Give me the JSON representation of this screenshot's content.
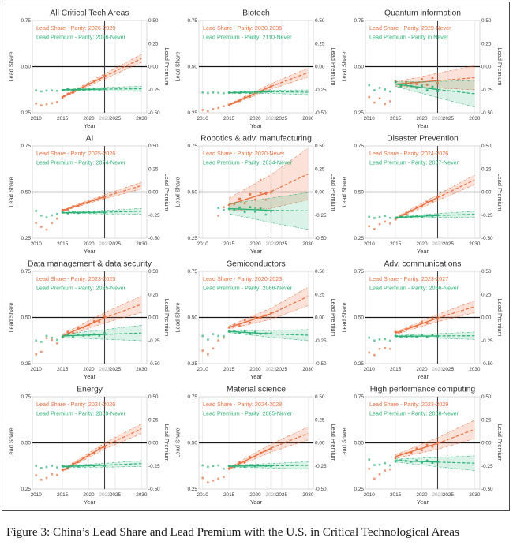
{
  "figure": {
    "caption": "Figure 3: China’s Lead Share and Lead Premium with the U.S. in Critical Technological Areas"
  },
  "colors": {
    "share": "#e87142",
    "premium": "#2cb176",
    "share_fan": "rgba(235,120,76,0.22)",
    "premium_fan": "rgba(44,177,118,0.17)",
    "grid": "#e6e6e6",
    "frame": "#cfcfcf",
    "vline": "#3e3e3e",
    "hline": "#161616",
    "tick": "#3a3a3a",
    "tick_muted": "#a0a0a0",
    "title": "#333333"
  },
  "axes": {
    "x_label": "Year",
    "y_left_label": "Lead Share",
    "y_right_label": "Lead Premium",
    "x_ticks": [
      2010,
      2015,
      2020,
      2023,
      2025,
      2030
    ],
    "y_left_ticks": [
      "0.25",
      "0.50",
      "0.75"
    ],
    "y_right_ticks": [
      "-0.50",
      "-0.25",
      "0.00",
      "0.25",
      "0.50"
    ],
    "x_range": [
      2009.3,
      2031
    ],
    "y_left_range": [
      0.25,
      0.75
    ],
    "y_right_range": [
      -0.5,
      0.5
    ],
    "vline_year": 2023,
    "hline_share": 0.5,
    "grid": true,
    "legend_position": "top-left inside"
  },
  "chart_data": [
    {
      "type": "line",
      "title": "All Critical Tech Areas",
      "legend": {
        "share": "Lead Share - Parity: 2026-2029",
        "premium": "Lead Premium - Parity: 2096-Never"
      },
      "share": {
        "pts": [
          [
            2010,
            0.3
          ],
          [
            2011,
            0.29
          ],
          [
            2012,
            0.296
          ],
          [
            2013,
            0.302
          ],
          [
            2014,
            0.308
          ]
        ],
        "fit": [
          [
            2015,
            0.335
          ],
          [
            2023,
            0.447
          ],
          [
            2030,
            0.545
          ]
        ],
        "fan": [
          0.004,
          0.022
        ],
        "amp": 0.004
      },
      "premium": {
        "pts": [
          [
            2010,
            0.372
          ],
          [
            2011,
            0.366
          ],
          [
            2012,
            0.37
          ],
          [
            2013,
            0.371
          ],
          [
            2014,
            0.369
          ]
        ],
        "fit": [
          [
            2015,
            0.374
          ],
          [
            2023,
            0.378
          ],
          [
            2030,
            0.38
          ]
        ],
        "fan": [
          0.003,
          0.014
        ],
        "amp": 0.003
      }
    },
    {
      "type": "line",
      "title": "Biotech",
      "legend": {
        "share": "Lead Share - Parity: 2030-2035",
        "premium": "Lead Premium - Parity: 2110-Never"
      },
      "share": {
        "pts": [
          [
            2010,
            0.265
          ],
          [
            2011,
            0.259
          ],
          [
            2012,
            0.27
          ],
          [
            2013,
            0.276
          ],
          [
            2014,
            0.285
          ]
        ],
        "fit": [
          [
            2015,
            0.292
          ],
          [
            2023,
            0.393
          ],
          [
            2030,
            0.468
          ]
        ],
        "fan": [
          0.004,
          0.024
        ],
        "amp": 0.004
      },
      "premium": {
        "pts": [
          [
            2010,
            0.36
          ],
          [
            2011,
            0.357
          ],
          [
            2012,
            0.36
          ],
          [
            2013,
            0.358
          ],
          [
            2014,
            0.356
          ]
        ],
        "fit": [
          [
            2015,
            0.358
          ],
          [
            2023,
            0.364
          ],
          [
            2030,
            0.361
          ]
        ],
        "fan": [
          0.003,
          0.013
        ],
        "amp": 0.003
      }
    },
    {
      "type": "line",
      "title": "Quantum information",
      "legend": {
        "share": "Lead Share - Parity: 2029-Never",
        "premium": "Lead Premium - Parity in Never"
      },
      "share": {
        "pts": [
          [
            2010,
            0.335
          ],
          [
            2011,
            0.305
          ],
          [
            2012,
            0.328
          ],
          [
            2013,
            0.298
          ],
          [
            2014,
            0.312
          ]
        ],
        "fit": [
          [
            2015,
            0.405
          ],
          [
            2023,
            0.424
          ],
          [
            2030,
            0.44
          ]
        ],
        "fan": [
          0.012,
          0.065
        ],
        "amp": 0.018
      },
      "premium": {
        "pts": [
          [
            2010,
            0.4
          ],
          [
            2011,
            0.372
          ],
          [
            2012,
            0.385
          ],
          [
            2013,
            0.376
          ],
          [
            2014,
            0.365
          ]
        ],
        "fit": [
          [
            2015,
            0.405
          ],
          [
            2023,
            0.376
          ],
          [
            2030,
            0.353
          ]
        ],
        "fan": [
          0.012,
          0.072
        ],
        "amp": 0.012
      }
    },
    {
      "type": "line",
      "title": "AI",
      "legend": {
        "share": "Lead Share - Parity: 2025-2026",
        "premium": "Lead Premium - Parity: 2074-Never"
      },
      "share": {
        "pts": [
          [
            2010,
            0.333
          ],
          [
            2011,
            0.312
          ],
          [
            2012,
            0.296
          ],
          [
            2013,
            0.332
          ],
          [
            2014,
            0.356
          ]
        ],
        "fit": [
          [
            2015,
            0.4
          ],
          [
            2023,
            0.475
          ],
          [
            2030,
            0.535
          ]
        ],
        "fan": [
          0.004,
          0.018
        ],
        "amp": 0.004
      },
      "premium": {
        "pts": [
          [
            2010,
            0.398
          ],
          [
            2011,
            0.373
          ],
          [
            2012,
            0.363
          ],
          [
            2013,
            0.374
          ],
          [
            2014,
            0.381
          ]
        ],
        "fit": [
          [
            2015,
            0.388
          ],
          [
            2023,
            0.391
          ],
          [
            2030,
            0.396
          ]
        ],
        "fan": [
          0.003,
          0.015
        ],
        "amp": 0.003
      }
    },
    {
      "type": "line",
      "title": "Robotics & adv. manufacturing",
      "legend": {
        "share": "Lead Share - Parity: 2020-Never",
        "premium": "Lead Premium - Parity: 2034-Never"
      },
      "share": {
        "pts": [
          [
            2013,
            0.372
          ],
          [
            2014,
            0.418
          ],
          [
            2017,
            0.462
          ],
          [
            2019,
            0.488
          ],
          [
            2021,
            0.566
          ],
          [
            2022,
            0.458
          ]
        ],
        "fit": [
          [
            2015,
            0.432
          ],
          [
            2023,
            0.503
          ],
          [
            2030,
            0.598
          ]
        ],
        "fan": [
          0.035,
          0.14
        ],
        "amp": 0.02
      },
      "premium": {
        "pts": [
          [
            2013,
            0.414
          ],
          [
            2014,
            0.404
          ],
          [
            2018,
            0.392
          ],
          [
            2020,
            0.412
          ],
          [
            2022,
            0.378
          ]
        ],
        "fit": [
          [
            2015,
            0.41
          ],
          [
            2023,
            0.401
          ],
          [
            2030,
            0.398
          ]
        ],
        "fan": [
          0.028,
          0.1
        ],
        "amp": 0.012
      }
    },
    {
      "type": "line",
      "title": "Disaster Prevention",
      "legend": {
        "share": "Lead Share - Parity: 2024-2026",
        "premium": "Lead Premium - Parity: 2057-Never"
      },
      "share": {
        "pts": [
          [
            2010,
            0.315
          ],
          [
            2011,
            0.3
          ],
          [
            2012,
            0.326
          ],
          [
            2013,
            0.34
          ],
          [
            2014,
            0.33
          ]
        ],
        "fit": [
          [
            2015,
            0.356
          ],
          [
            2023,
            0.47
          ],
          [
            2030,
            0.566
          ]
        ],
        "fan": [
          0.005,
          0.026
        ],
        "amp": 0.005
      },
      "premium": {
        "pts": [
          [
            2010,
            0.366
          ],
          [
            2011,
            0.359
          ],
          [
            2012,
            0.365
          ],
          [
            2013,
            0.371
          ],
          [
            2014,
            0.36
          ]
        ],
        "fit": [
          [
            2015,
            0.362
          ],
          [
            2023,
            0.373
          ],
          [
            2030,
            0.38
          ]
        ],
        "fan": [
          0.004,
          0.016
        ],
        "amp": 0.004
      }
    },
    {
      "type": "line",
      "title": "Data management & data security",
      "legend": {
        "share": "Lead Share - Parity: 2023-2025",
        "premium": "Lead Premium - Parity: 2035-Never"
      },
      "share": {
        "pts": [
          [
            2010,
            0.3
          ],
          [
            2011,
            0.314
          ],
          [
            2012,
            0.388
          ],
          [
            2013,
            0.378
          ],
          [
            2014,
            0.36
          ]
        ],
        "fit": [
          [
            2015,
            0.4
          ],
          [
            2023,
            0.498
          ],
          [
            2030,
            0.572
          ]
        ],
        "fan": [
          0.008,
          0.045
        ],
        "amp": 0.01
      },
      "premium": {
        "pts": [
          [
            2010,
            0.375
          ],
          [
            2011,
            0.368
          ],
          [
            2012,
            0.4
          ],
          [
            2013,
            0.39
          ],
          [
            2014,
            0.378
          ]
        ],
        "fit": [
          [
            2015,
            0.4
          ],
          [
            2023,
            0.408
          ],
          [
            2030,
            0.416
          ]
        ],
        "fan": [
          0.008,
          0.042
        ],
        "amp": 0.006
      }
    },
    {
      "type": "line",
      "title": "Semiconductors",
      "legend": {
        "share": "Lead Share - Parity: 2020-2023",
        "premium": "Lead Premium - Parity: 2066-Never"
      },
      "share": {
        "pts": [
          [
            2010,
            0.32
          ],
          [
            2011,
            0.3
          ],
          [
            2012,
            0.332
          ],
          [
            2013,
            0.376
          ],
          [
            2014,
            0.39
          ]
        ],
        "fit": [
          [
            2015,
            0.446
          ],
          [
            2023,
            0.52
          ],
          [
            2030,
            0.614
          ]
        ],
        "fan": [
          0.008,
          0.05
        ],
        "amp": 0.012
      },
      "premium": {
        "pts": [
          [
            2010,
            0.4
          ],
          [
            2011,
            0.38
          ],
          [
            2012,
            0.41
          ],
          [
            2013,
            0.4
          ],
          [
            2014,
            0.399
          ]
        ],
        "fit": [
          [
            2015,
            0.424
          ],
          [
            2023,
            0.411
          ],
          [
            2030,
            0.404
          ]
        ],
        "fan": [
          0.006,
          0.03
        ],
        "amp": 0.007
      }
    },
    {
      "type": "line",
      "title": "Adv. communications",
      "legend": {
        "share": "Lead Share - Parity: 2023-2027",
        "premium": "Lead Premium - Parity: 2066-Never"
      },
      "share": {
        "pts": [
          [
            2010,
            0.31
          ],
          [
            2011,
            0.296
          ],
          [
            2012,
            0.33
          ],
          [
            2013,
            0.334
          ],
          [
            2014,
            0.33
          ]
        ],
        "fit": [
          [
            2015,
            0.415
          ],
          [
            2023,
            0.497
          ],
          [
            2030,
            0.558
          ]
        ],
        "fan": [
          0.006,
          0.032
        ],
        "amp": 0.008
      },
      "premium": {
        "pts": [
          [
            2010,
            0.39
          ],
          [
            2011,
            0.375
          ],
          [
            2012,
            0.381
          ],
          [
            2013,
            0.383
          ],
          [
            2014,
            0.374
          ]
        ],
        "fit": [
          [
            2015,
            0.398
          ],
          [
            2023,
            0.4
          ],
          [
            2030,
            0.401
          ]
        ],
        "fan": [
          0.004,
          0.02
        ],
        "amp": 0.004
      }
    },
    {
      "type": "line",
      "title": "Energy",
      "legend": {
        "share": "Lead Share - Parity: 2024-2026",
        "premium": "Lead Premium - Parity: 2059-Never"
      },
      "share": {
        "pts": [
          [
            2010,
            0.325
          ],
          [
            2011,
            0.3
          ],
          [
            2012,
            0.31
          ],
          [
            2013,
            0.33
          ],
          [
            2014,
            0.326
          ]
        ],
        "fit": [
          [
            2015,
            0.35
          ],
          [
            2023,
            0.483
          ],
          [
            2030,
            0.577
          ]
        ],
        "fan": [
          0.005,
          0.026
        ],
        "amp": 0.005
      },
      "premium": {
        "pts": [
          [
            2010,
            0.376
          ],
          [
            2011,
            0.364
          ],
          [
            2012,
            0.37
          ],
          [
            2013,
            0.376
          ],
          [
            2014,
            0.367
          ]
        ],
        "fit": [
          [
            2015,
            0.372
          ],
          [
            2023,
            0.379
          ],
          [
            2030,
            0.388
          ]
        ],
        "fan": [
          0.004,
          0.016
        ],
        "amp": 0.004
      }
    },
    {
      "type": "line",
      "title": "Material science",
      "legend": {
        "share": "Lead Share - Parity: 2024-2028",
        "premium": "Lead Premium - Parity: 2085-Never"
      },
      "share": {
        "pts": [
          [
            2010,
            0.31
          ],
          [
            2011,
            0.286
          ],
          [
            2012,
            0.296
          ],
          [
            2013,
            0.306
          ],
          [
            2014,
            0.316
          ]
        ],
        "fit": [
          [
            2015,
            0.36
          ],
          [
            2023,
            0.472
          ],
          [
            2030,
            0.551
          ]
        ],
        "fan": [
          0.006,
          0.035
        ],
        "amp": 0.006
      },
      "premium": {
        "pts": [
          [
            2010,
            0.378
          ],
          [
            2011,
            0.371
          ],
          [
            2012,
            0.375
          ],
          [
            2013,
            0.378
          ],
          [
            2014,
            0.36
          ]
        ],
        "fit": [
          [
            2015,
            0.374
          ],
          [
            2023,
            0.376
          ],
          [
            2030,
            0.378
          ]
        ],
        "fan": [
          0.004,
          0.02
        ],
        "amp": 0.004
      }
    },
    {
      "type": "line",
      "title": "High performance computing",
      "legend": {
        "share": "Lead Share - Parity: 2023-2029",
        "premium": "Lead Premium - Parity: 2058-Never"
      },
      "share": {
        "pts": [
          [
            2010,
            0.36
          ],
          [
            2011,
            0.306
          ],
          [
            2012,
            0.33
          ],
          [
            2013,
            0.35
          ],
          [
            2014,
            0.356
          ]
        ],
        "fit": [
          [
            2015,
            0.426
          ],
          [
            2023,
            0.497
          ],
          [
            2030,
            0.573
          ]
        ],
        "fan": [
          0.01,
          0.05
        ],
        "amp": 0.01
      },
      "premium": {
        "pts": [
          [
            2010,
            0.41
          ],
          [
            2011,
            0.38
          ],
          [
            2012,
            0.382
          ],
          [
            2013,
            0.39
          ],
          [
            2014,
            0.378
          ]
        ],
        "fit": [
          [
            2015,
            0.404
          ],
          [
            2023,
            0.396
          ],
          [
            2030,
            0.39
          ]
        ],
        "fan": [
          0.008,
          0.04
        ],
        "amp": 0.006
      }
    }
  ]
}
